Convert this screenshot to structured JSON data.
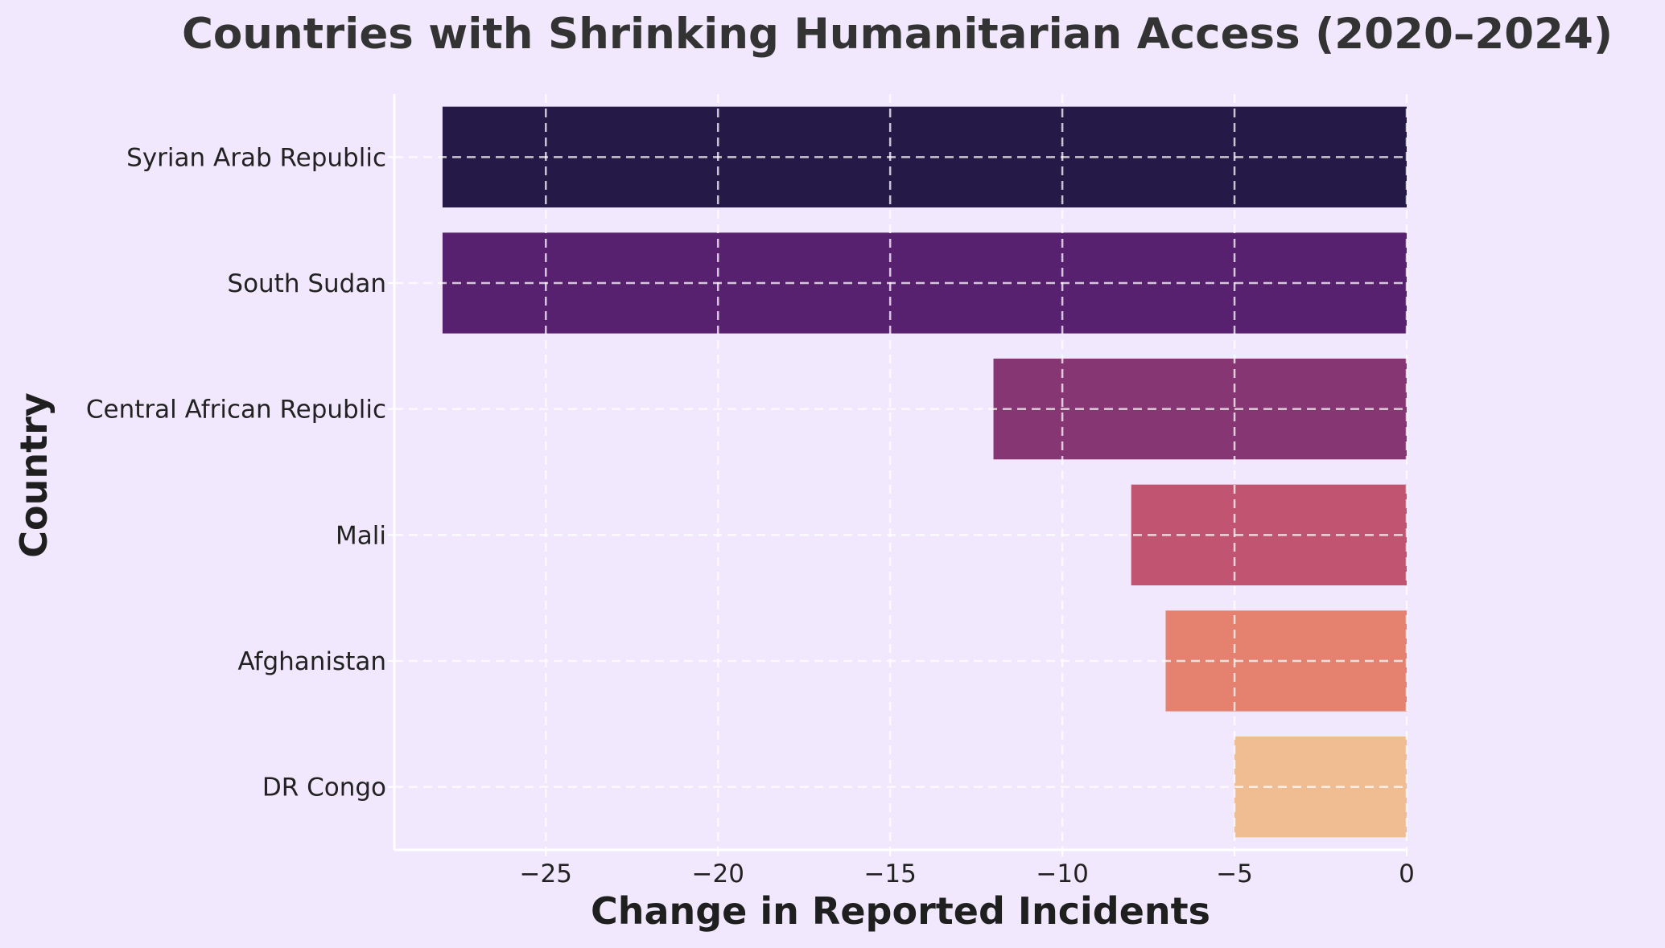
{
  "chart_data": {
    "type": "bar",
    "orientation": "horizontal",
    "title": "Countries with Shrinking Humanitarian Access (2020–2024)",
    "xlabel": "Change in Reported Incidents",
    "ylabel": "Country",
    "categories": [
      "Syrian Arab Republic",
      "South Sudan",
      "Central African Republic",
      "Mali",
      "Afghanistan",
      "DR Congo"
    ],
    "values": [
      -28,
      -28,
      -12,
      -8,
      -7,
      -5
    ],
    "colors": [
      "#251a47",
      "#58216f",
      "#873674",
      "#c15571",
      "#e5826f",
      "#efbd91"
    ],
    "xlim": [
      -29.4,
      0
    ],
    "xticks": [
      -25,
      -20,
      -15,
      -10,
      -5,
      0
    ],
    "xtick_labels": [
      "−25",
      "−20",
      "−15",
      "−10",
      "−5",
      "0"
    ],
    "grid": true,
    "background": "#f2e8fe"
  }
}
